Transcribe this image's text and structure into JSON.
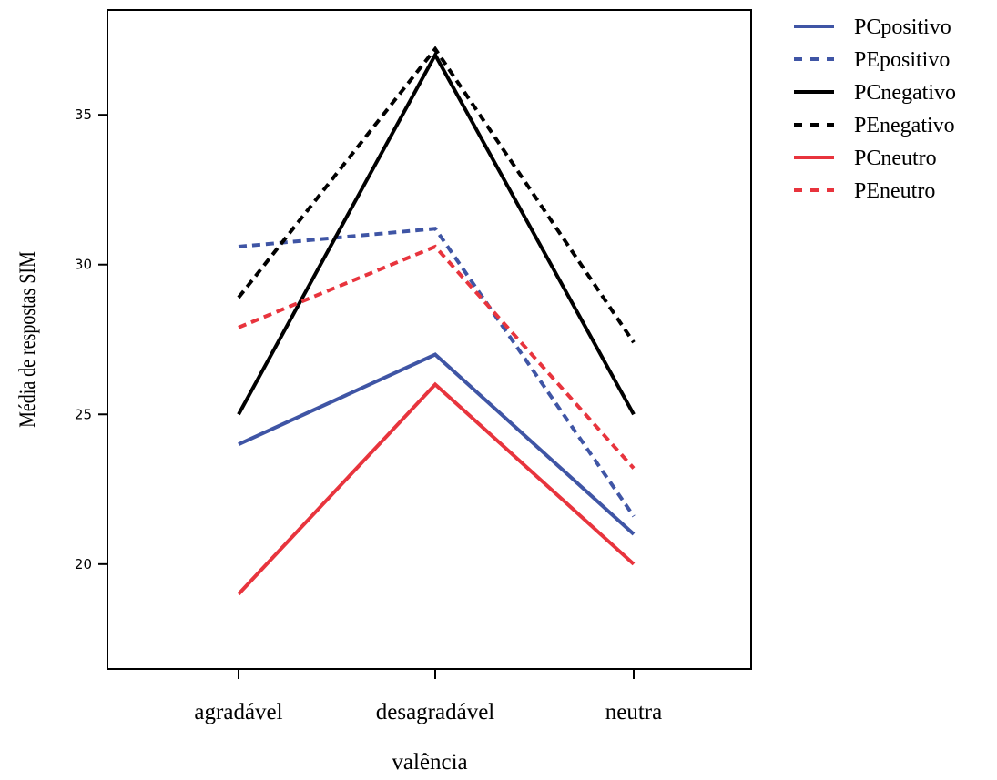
{
  "chart_data": {
    "type": "line",
    "title": "",
    "xlabel": "valência",
    "ylabel": "Média de respostas SIM",
    "categories": [
      "agradável",
      "desagradável",
      "neutra"
    ],
    "ylim": [
      16.5,
      38.5
    ],
    "yticks": [
      20,
      25,
      30,
      35
    ],
    "grid": false,
    "legend_position": "outside top-right",
    "series": [
      {
        "name": "PCpositivo",
        "values": [
          24,
          27,
          21
        ],
        "color": "#3f55a5",
        "dashed": false
      },
      {
        "name": "PEpositivo",
        "values": [
          30.6,
          31.2,
          21.6
        ],
        "color": "#3f55a5",
        "dashed": true
      },
      {
        "name": "PCnegativo",
        "values": [
          25,
          37,
          25
        ],
        "color": "#000000",
        "dashed": false
      },
      {
        "name": "PEnegativo",
        "values": [
          28.9,
          37.2,
          27.4
        ],
        "color": "#000000",
        "dashed": true
      },
      {
        "name": "PCneutro",
        "values": [
          19,
          26,
          20
        ],
        "color": "#e8343d",
        "dashed": false
      },
      {
        "name": "PEneutro",
        "values": [
          27.9,
          30.6,
          23.2
        ],
        "color": "#e8343d",
        "dashed": true
      }
    ]
  }
}
